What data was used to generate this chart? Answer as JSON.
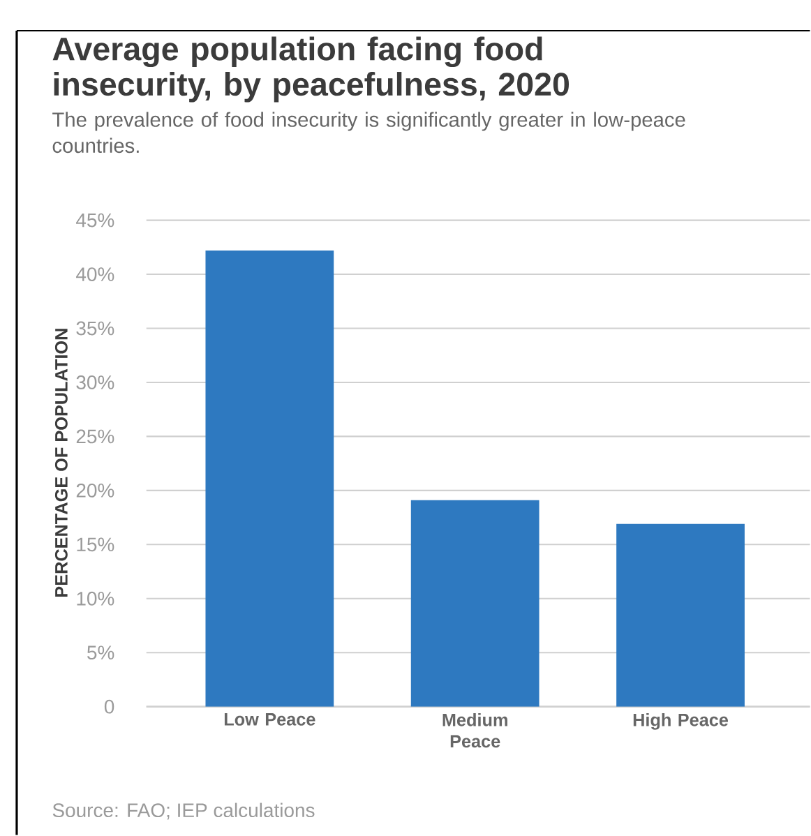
{
  "chart_data": {
    "type": "bar",
    "title": "Average population facing food insecurity, by peacefulness, 2020",
    "subtitle": "The prevalence of food insecurity is significantly greater in low-peace countries.",
    "ylabel": "PERCENTAGE OF POPULATION",
    "categories": [
      "Low Peace",
      "Medium Peace",
      "High Peace"
    ],
    "values": [
      42.2,
      19.1,
      16.9
    ],
    "color": "#2e79c0",
    "ylim": [
      0,
      45
    ],
    "yticks": [
      0,
      {
        "value": 5,
        "label": "5%"
      },
      {
        "value": 10,
        "label": "10%"
      },
      {
        "value": 15,
        "label": "15%"
      },
      {
        "value": 20,
        "label": "20%"
      },
      {
        "value": 25,
        "label": "25%"
      },
      {
        "value": 30,
        "label": "30%"
      },
      {
        "value": 35,
        "label": "35%"
      },
      {
        "value": 40,
        "label": "40%"
      },
      {
        "value": 45,
        "label": "45%"
      }
    ],
    "grid": "y",
    "annotations": [
      "Source: FAO; IEP calculations"
    ]
  }
}
